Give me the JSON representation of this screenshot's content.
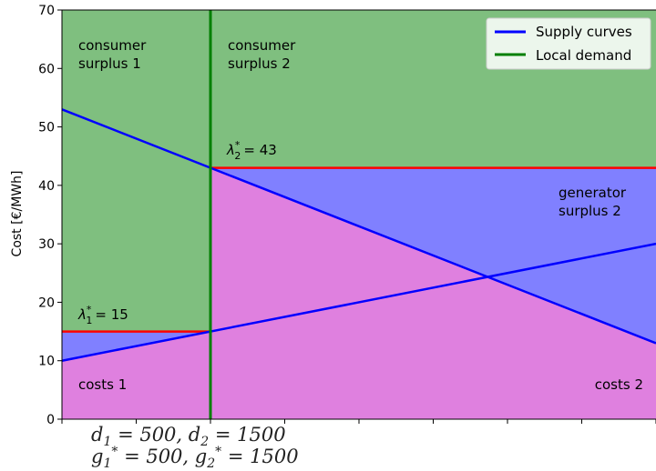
{
  "chart_data": {
    "type": "area",
    "ylabel": "Cost [€/MWh]",
    "xlim": [
      0,
      4000
    ],
    "ylim": [
      0,
      70
    ],
    "yticks": [
      0,
      10,
      20,
      30,
      40,
      50,
      60,
      70
    ],
    "xticks": [
      0,
      500,
      1000,
      1500,
      2000,
      2500,
      3000,
      3500,
      4000
    ],
    "colors": {
      "consumer": "#7fbf7f",
      "generator": "#8080ff",
      "costs": "#df80df",
      "supply": "#0000ff",
      "demand": "#007f00",
      "price": "#ff0000"
    },
    "supply_curves": [
      {
        "x": [
          0,
          4000
        ],
        "y": [
          10,
          30
        ]
      },
      {
        "x": [
          0,
          4000
        ],
        "y": [
          53,
          13
        ]
      }
    ],
    "local_demand_x": 1000,
    "prices": [
      {
        "label_main": "λ",
        "label_sub": "1",
        "label_sup": "*",
        "label_value": "= 15",
        "y": 15,
        "x_from": 0,
        "x_to": 1000
      },
      {
        "label_main": "λ",
        "label_sub": "2",
        "label_sup": "*",
        "label_value": "= 43",
        "y": 43,
        "x_from": 1000,
        "x_to": 4000
      }
    ],
    "regions": {
      "consumer_surplus_1": [
        "consumer",
        "surplus 1"
      ],
      "consumer_surplus_2": [
        "consumer",
        "surplus 2"
      ],
      "generator_surplus_2": [
        "generator",
        "surplus 2"
      ],
      "costs_1": "costs 1",
      "costs_2": "costs 2"
    },
    "legend": {
      "placement": "top-right",
      "entries": [
        {
          "label": "Supply curves",
          "color": "#0000ff"
        },
        {
          "label": "Local demand",
          "color": "#007f00"
        }
      ]
    }
  },
  "notes": {
    "line1": {
      "d1": "d",
      "d1_sub": "1",
      "d1_val": "= 500,",
      "d2": "d",
      "d2_sub": "2",
      "d2_val": "= 1500"
    },
    "line2": {
      "g1": "g",
      "g1_sub": "1",
      "g1_sup": "*",
      "g1_val": "= 500,",
      "g2": "g",
      "g2_sub": "2",
      "g2_sup": "*",
      "g2_val": "= 1500"
    }
  }
}
